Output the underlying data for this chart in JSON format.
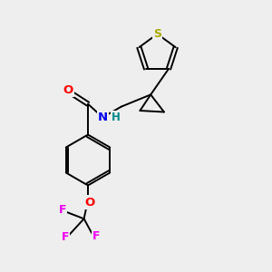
{
  "background_color": "#eeeeee",
  "bond_color": "#000000",
  "atom_colors": {
    "S": "#aaaa00",
    "O": "#ff0000",
    "N": "#0000ee",
    "H": "#008888",
    "F": "#ee00ee",
    "C": "#000000"
  },
  "figsize": [
    3.0,
    3.0
  ],
  "dpi": 100
}
